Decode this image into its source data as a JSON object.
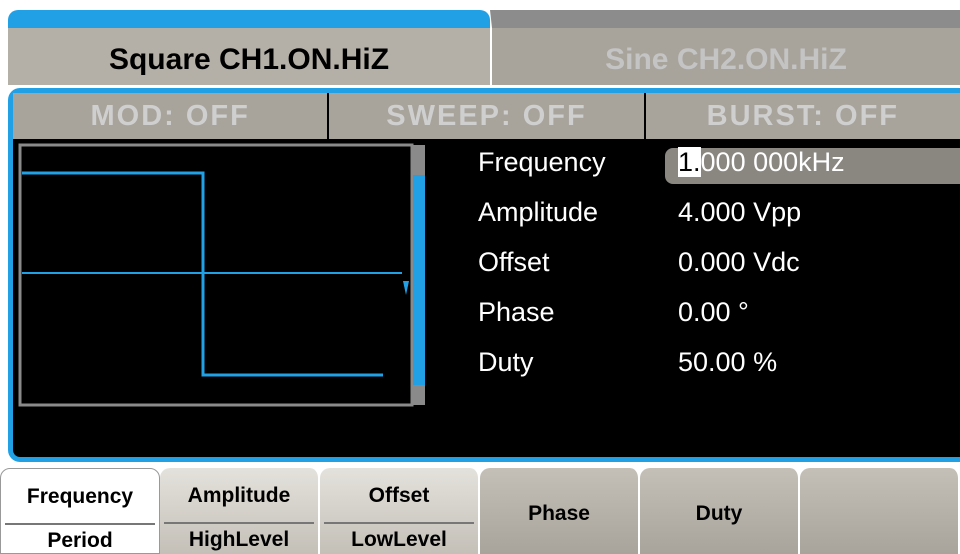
{
  "tabs": [
    {
      "label": "Square CH1.ON.HiZ"
    },
    {
      "label": "Sine CH2.ON.HiZ"
    }
  ],
  "status": [
    "MOD: OFF",
    "SWEEP: OFF",
    "BURST: OFF"
  ],
  "parameters": [
    {
      "label": "Frequency",
      "value": "1.000 000kHz"
    },
    {
      "label": "Amplitude",
      "value": "4.000 Vpp"
    },
    {
      "label": "Offset",
      "value": "0.000 Vdc"
    },
    {
      "label": "Phase",
      "value": "0.00 °"
    },
    {
      "label": "Duty",
      "value": "50.00 %"
    }
  ],
  "softkeys": [
    {
      "top": "Frequency",
      "bottom": "Period"
    },
    {
      "top": "Amplitude",
      "bottom": "HighLevel"
    },
    {
      "top": "Offset",
      "bottom": "LowLevel"
    },
    {
      "label": "Phase"
    },
    {
      "label": "Duty"
    },
    {}
  ]
}
